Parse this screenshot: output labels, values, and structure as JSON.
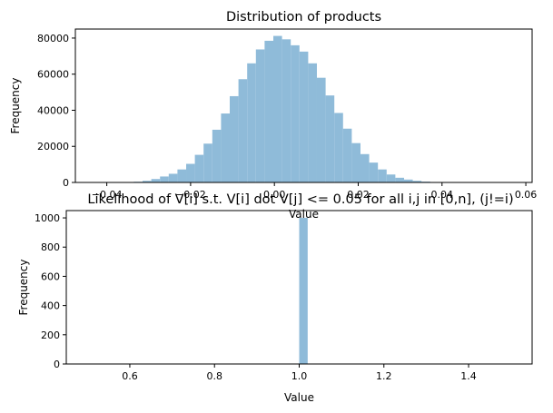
{
  "chart_data": [
    {
      "type": "bar",
      "title": "Distribution of products",
      "xlabel": "Value",
      "ylabel": "Frequency",
      "xlim": [
        -0.0475,
        0.0615
      ],
      "ylim": [
        0,
        85000
      ],
      "xticks": [
        -0.04,
        -0.02,
        0.0,
        0.02,
        0.04,
        0.06
      ],
      "xtick_labels": [
        "−0.04",
        "−0.02",
        "0.00",
        "0.02",
        "0.04",
        "0.06"
      ],
      "yticks": [
        0,
        20000,
        40000,
        60000,
        80000
      ],
      "ytick_labels": [
        "0",
        "20000",
        "40000",
        "60000",
        "80000"
      ],
      "grid": false,
      "color": "#8fbbd9",
      "bins": {
        "start": -0.0377,
        "width": 0.00208,
        "values": [
          80,
          150,
          380,
          900,
          1900,
          3300,
          4800,
          7200,
          10300,
          15300,
          21500,
          29200,
          38200,
          47800,
          57200,
          66000,
          73700,
          78500,
          81200,
          79300,
          76000,
          72500,
          66000,
          58000,
          48200,
          38500,
          29800,
          21800,
          15700,
          11000,
          7200,
          4400,
          2600,
          1600,
          900,
          450,
          220,
          110,
          60,
          30,
          15,
          8,
          5,
          3,
          2,
          1,
          1,
          1,
          1
        ]
      }
    },
    {
      "type": "bar",
      "title": "Likelihood of V[i] s.t. V[i] dot V[j] <= 0.05 for all i,j in [0,n], (j!=i)",
      "xlabel": "Value",
      "ylabel": "Frequency",
      "xlim": [
        0.45,
        1.55
      ],
      "ylim": [
        0,
        1050
      ],
      "xticks": [
        0.6,
        0.8,
        1.0,
        1.2,
        1.4
      ],
      "xtick_labels": [
        "0.6",
        "0.8",
        "1.0",
        "1.2",
        "1.4"
      ],
      "yticks": [
        0,
        200,
        400,
        600,
        800,
        1000
      ],
      "ytick_labels": [
        "0",
        "200",
        "400",
        "600",
        "800",
        "1000"
      ],
      "grid": false,
      "color": "#8fbbd9",
      "bins": {
        "start": 1.0,
        "width": 0.02,
        "values": [
          1000
        ]
      }
    }
  ]
}
